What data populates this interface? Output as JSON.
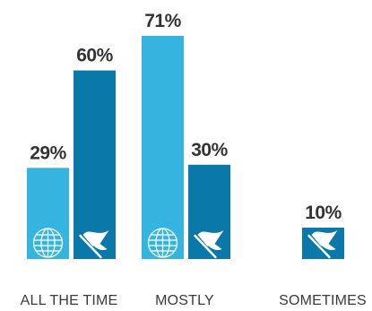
{
  "chart_data": {
    "type": "bar",
    "categories": [
      "ALL THE TIME",
      "MOSTLY",
      "SOMETIMES"
    ],
    "series": [
      {
        "icon": "globe-icon",
        "color": "#35b4e0",
        "values": [
          29,
          71,
          null
        ],
        "labels": [
          "29%",
          "71%",
          ""
        ]
      },
      {
        "icon": "flag-icon",
        "color": "#0a78a8",
        "values": [
          60,
          30,
          10
        ],
        "labels": [
          "60%",
          "30%",
          "10%"
        ]
      }
    ],
    "ylim": [
      0,
      100
    ],
    "grid": false,
    "legend": "none"
  }
}
